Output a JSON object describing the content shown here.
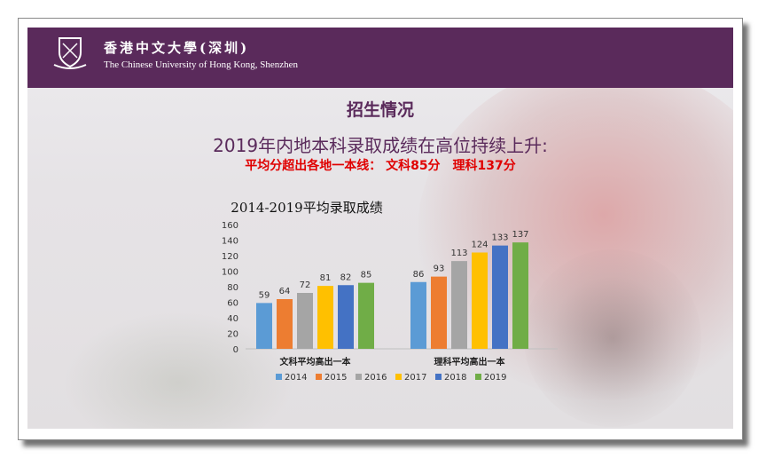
{
  "header": {
    "university_cn": "香港中文大學(深圳)",
    "university_en": "The Chinese University of Hong Kong, Shenzhen"
  },
  "slide": {
    "title": "招生情况",
    "subtitle": "2019年内地本科录取成绩在高位持续上升:",
    "highlight": "平均分超出各地一本线： 文科85分　理科137分"
  },
  "chart_data": {
    "type": "bar",
    "title": "2014-2019平均录取成绩",
    "categories": [
      "文科平均高出一本",
      "理科平均高出一本"
    ],
    "series": [
      {
        "name": "2014",
        "color": "#5b9bd5",
        "values": [
          59,
          86
        ]
      },
      {
        "name": "2015",
        "color": "#ed7d31",
        "values": [
          64,
          93
        ]
      },
      {
        "name": "2016",
        "color": "#a5a5a5",
        "values": [
          72,
          113
        ]
      },
      {
        "name": "2017",
        "color": "#ffc000",
        "values": [
          81,
          124
        ]
      },
      {
        "name": "2018",
        "color": "#4472c4",
        "values": [
          82,
          133
        ]
      },
      {
        "name": "2019",
        "color": "#70ad47",
        "values": [
          85,
          137
        ]
      }
    ],
    "ylim": [
      0,
      160
    ],
    "yticks": [
      0,
      20,
      40,
      60,
      80,
      100,
      120,
      140,
      160
    ],
    "grid": false,
    "legend_position": "bottom",
    "data_labels": true
  }
}
